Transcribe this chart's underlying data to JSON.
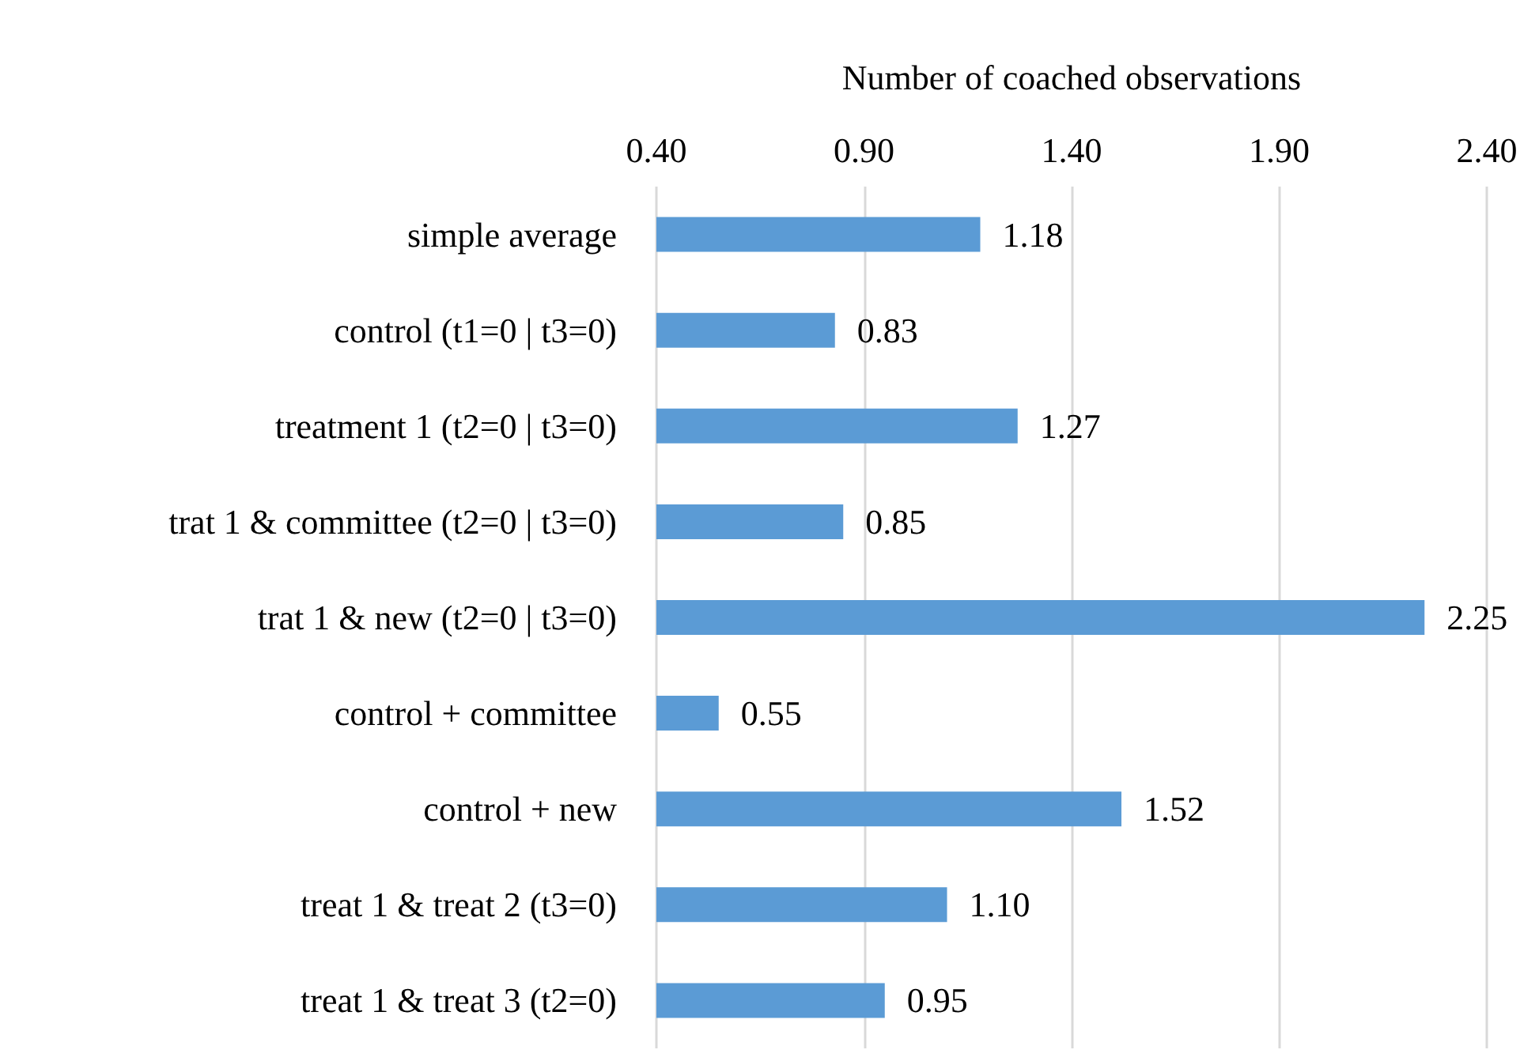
{
  "chart_data": {
    "type": "bar",
    "orientation": "horizontal",
    "xlabel": "Number of coached observations",
    "categories": [
      "simple average",
      "control (t1=0 | t3=0)",
      "treatment 1 (t2=0 | t3=0)",
      "trat 1 & committee (t2=0 | t3=0)",
      "trat 1 & new (t2=0 | t3=0)",
      "control + committee",
      "control + new",
      "treat 1 & treat 2 (t3=0)",
      "treat 1 & treat 3 (t2=0)"
    ],
    "values": [
      1.18,
      0.83,
      1.27,
      0.85,
      2.25,
      0.55,
      1.52,
      1.1,
      0.95
    ],
    "value_labels": [
      "1.18",
      "0.83",
      "1.27",
      "0.85",
      "2.25",
      "0.55",
      "1.52",
      "1.10",
      "0.95"
    ],
    "color": "#5b9bd5",
    "xlim": [
      0.4,
      2.4
    ],
    "xticks": [
      {
        "value": 0.4,
        "label": "0.40"
      },
      {
        "value": 0.9,
        "label": "0.90"
      },
      {
        "value": 1.4,
        "label": "1.40"
      },
      {
        "value": 1.9,
        "label": "1.90"
      },
      {
        "value": 2.4,
        "label": "2.40"
      }
    ],
    "grid": "x"
  }
}
